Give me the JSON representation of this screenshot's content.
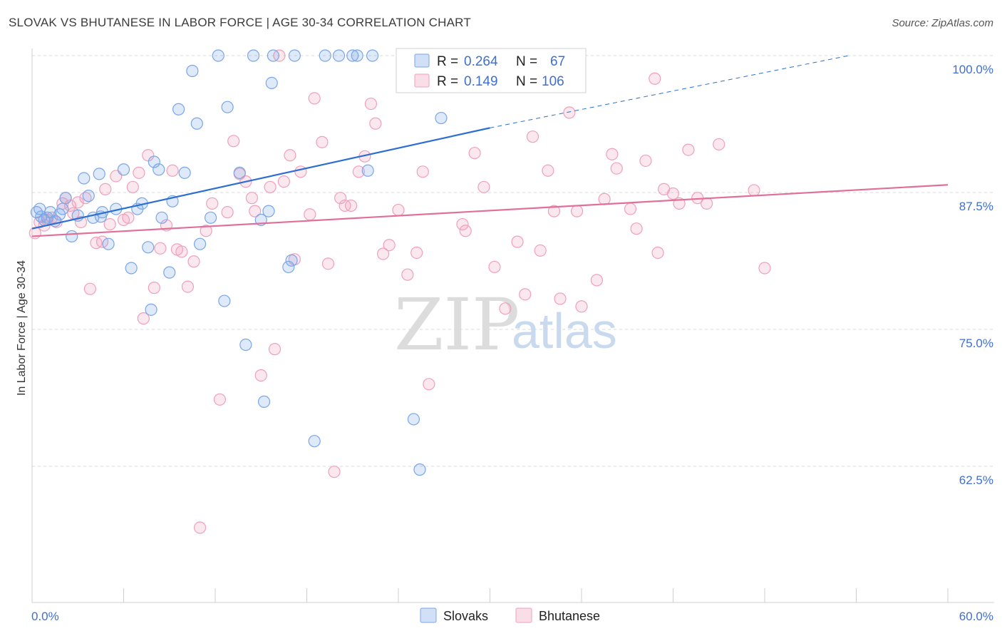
{
  "title": "SLOVAK VS BHUTANESE IN LABOR FORCE | AGE 30-34 CORRELATION CHART",
  "source": "Source: ZipAtlas.com",
  "watermark": {
    "zip": "ZIP",
    "atlas": "atlas"
  },
  "colors": {
    "slovak": "#7aa6e8",
    "slovak_fill": "rgba(122,166,232,0.25)",
    "slovak_line": "#2c6fd1",
    "bhutanese": "#f0a0ba",
    "bhutanese_fill": "rgba(240,160,186,0.25)",
    "bhutanese_line": "#e0709a",
    "grid": "#d8d8d8",
    "tick_text": "#3f6fcf"
  },
  "legend": {
    "rows": [
      {
        "r_label": "R = ",
        "r_value": "0.264",
        "n_label": "N = ",
        "n_value": "67"
      },
      {
        "r_label": "R = ",
        "r_value": "0.149",
        "n_label": "N = ",
        "n_value": "106"
      }
    ]
  },
  "chart_data": {
    "type": "scatter",
    "title": "SLOVAK VS BHUTANESE IN LABOR FORCE | AGE 30-34 CORRELATION CHART",
    "xlabel": "",
    "ylabel": "In Labor Force | Age 30-34",
    "xlim": [
      0,
      60
    ],
    "ylim": [
      52,
      100
    ],
    "x_tick_labels": [
      "0.0%",
      "60.0%"
    ],
    "y_ticks": [
      62.5,
      75.0,
      87.5,
      100.0
    ],
    "y_tick_labels": [
      "62.5%",
      "75.0%",
      "87.5%",
      "100.0%"
    ],
    "grid": true,
    "legend_position": "top-center",
    "series": [
      {
        "name": "Slovaks",
        "r": 0.264,
        "n": 67,
        "trend": {
          "x0": 0,
          "y0": 84.2,
          "x1": 30,
          "y1": 93.4,
          "dash_to_x": 53.5,
          "dash_to_y": 100.0
        },
        "points": [
          [
            0.3,
            85.7
          ],
          [
            0.5,
            86.0
          ],
          [
            0.6,
            85.3
          ],
          [
            0.8,
            85.0
          ],
          [
            1.0,
            85.2
          ],
          [
            1.2,
            85.7
          ],
          [
            1.5,
            84.9
          ],
          [
            1.8,
            85.5
          ],
          [
            2.0,
            86.0
          ],
          [
            2.2,
            87.0
          ],
          [
            2.6,
            83.5
          ],
          [
            3.0,
            85.4
          ],
          [
            3.4,
            88.8
          ],
          [
            3.7,
            87.2
          ],
          [
            4.0,
            85.2
          ],
          [
            4.4,
            89.2
          ],
          [
            4.5,
            85.3
          ],
          [
            4.6,
            85.7
          ],
          [
            5.0,
            82.8
          ],
          [
            5.5,
            86.0
          ],
          [
            6.0,
            89.6
          ],
          [
            6.5,
            80.6
          ],
          [
            6.9,
            86.0
          ],
          [
            7.2,
            86.5
          ],
          [
            7.6,
            82.5
          ],
          [
            7.8,
            76.8
          ],
          [
            8.0,
            90.3
          ],
          [
            8.3,
            89.6
          ],
          [
            8.5,
            85.2
          ],
          [
            9.0,
            80.2
          ],
          [
            9.2,
            86.7
          ],
          [
            9.6,
            95.1
          ],
          [
            10.0,
            89.3
          ],
          [
            10.5,
            98.6
          ],
          [
            10.8,
            93.8
          ],
          [
            11.0,
            82.8
          ],
          [
            11.7,
            85.2
          ],
          [
            12.2,
            100.0
          ],
          [
            12.6,
            77.6
          ],
          [
            12.8,
            95.3
          ],
          [
            13.6,
            89.3
          ],
          [
            14.0,
            73.6
          ],
          [
            14.5,
            100.0
          ],
          [
            15.0,
            85.0
          ],
          [
            15.2,
            68.4
          ],
          [
            15.5,
            85.8
          ],
          [
            15.7,
            97.5
          ],
          [
            15.8,
            100.0
          ],
          [
            16.8,
            80.7
          ],
          [
            17.0,
            81.3
          ],
          [
            17.2,
            100.0
          ],
          [
            18.5,
            64.8
          ],
          [
            19.2,
            100.0
          ],
          [
            20.1,
            100.0
          ],
          [
            21.0,
            100.0
          ],
          [
            21.3,
            100.0
          ],
          [
            22.0,
            89.5
          ],
          [
            22.3,
            100.0
          ],
          [
            25.0,
            66.8
          ],
          [
            25.4,
            62.2
          ],
          [
            25.5,
            100.0
          ],
          [
            26.8,
            94.3
          ],
          [
            27.2,
            100.0
          ],
          [
            28.8,
            100.0
          ],
          [
            29.0,
            100.0
          ],
          [
            30.0,
            99.8
          ],
          [
            30.2,
            99.8
          ]
        ]
      },
      {
        "name": "Bhutanese",
        "r": 0.149,
        "n": 106,
        "trend": {
          "x0": 0,
          "y0": 83.5,
          "x1": 60,
          "y1": 88.2
        },
        "points": [
          [
            0.2,
            83.8
          ],
          [
            0.5,
            84.8
          ],
          [
            0.8,
            84.5
          ],
          [
            1.0,
            85.0
          ],
          [
            1.3,
            85.2
          ],
          [
            1.6,
            84.8
          ],
          [
            2.0,
            86.5
          ],
          [
            2.2,
            87.0
          ],
          [
            2.5,
            86.3
          ],
          [
            2.7,
            85.6
          ],
          [
            3.0,
            86.6
          ],
          [
            3.2,
            84.8
          ],
          [
            3.5,
            87.0
          ],
          [
            3.8,
            78.7
          ],
          [
            4.2,
            82.9
          ],
          [
            4.6,
            83.0
          ],
          [
            4.8,
            87.8
          ],
          [
            5.1,
            84.6
          ],
          [
            5.5,
            89.0
          ],
          [
            6.0,
            85.0
          ],
          [
            6.3,
            85.2
          ],
          [
            6.6,
            88.0
          ],
          [
            7.0,
            89.3
          ],
          [
            7.3,
            76.0
          ],
          [
            7.6,
            90.9
          ],
          [
            8.0,
            78.8
          ],
          [
            8.4,
            82.4
          ],
          [
            8.8,
            84.5
          ],
          [
            9.2,
            89.5
          ],
          [
            9.5,
            82.3
          ],
          [
            9.8,
            82.1
          ],
          [
            10.2,
            78.9
          ],
          [
            10.6,
            81.2
          ],
          [
            11.0,
            56.9
          ],
          [
            11.4,
            84.0
          ],
          [
            11.8,
            86.5
          ],
          [
            12.3,
            68.6
          ],
          [
            12.8,
            85.7
          ],
          [
            13.2,
            92.2
          ],
          [
            13.6,
            89.2
          ],
          [
            14.0,
            88.5
          ],
          [
            14.4,
            87.0
          ],
          [
            14.6,
            85.8
          ],
          [
            15.0,
            70.8
          ],
          [
            15.6,
            88.0
          ],
          [
            15.9,
            73.2
          ],
          [
            16.2,
            100.0
          ],
          [
            16.5,
            88.5
          ],
          [
            16.9,
            90.9
          ],
          [
            17.2,
            81.4
          ],
          [
            17.6,
            89.4
          ],
          [
            18.2,
            85.5
          ],
          [
            18.5,
            96.1
          ],
          [
            19.0,
            92.1
          ],
          [
            19.4,
            81.0
          ],
          [
            19.8,
            62.0
          ],
          [
            20.2,
            87.0
          ],
          [
            20.5,
            86.3
          ],
          [
            20.9,
            86.3
          ],
          [
            21.4,
            89.4
          ],
          [
            21.8,
            90.8
          ],
          [
            22.2,
            95.6
          ],
          [
            22.5,
            93.8
          ],
          [
            23.0,
            81.9
          ],
          [
            23.4,
            82.7
          ],
          [
            24.0,
            85.9
          ],
          [
            24.6,
            80.0
          ],
          [
            25.2,
            82.0
          ],
          [
            25.6,
            89.4
          ],
          [
            26.0,
            70.0
          ],
          [
            26.5,
            100.0
          ],
          [
            27.2,
            100.0
          ],
          [
            28.2,
            84.6
          ],
          [
            28.4,
            84.0
          ],
          [
            29.0,
            91.1
          ],
          [
            29.6,
            88.0
          ],
          [
            30.3,
            80.7
          ],
          [
            31.0,
            76.9
          ],
          [
            31.8,
            83.0
          ],
          [
            32.3,
            78.2
          ],
          [
            32.8,
            92.6
          ],
          [
            33.3,
            82.2
          ],
          [
            33.8,
            89.5
          ],
          [
            34.2,
            85.8
          ],
          [
            34.6,
            77.8
          ],
          [
            35.2,
            94.8
          ],
          [
            35.7,
            85.8
          ],
          [
            36.0,
            77.1
          ],
          [
            37.0,
            79.5
          ],
          [
            37.5,
            86.9
          ],
          [
            38.0,
            91.0
          ],
          [
            38.3,
            89.7
          ],
          [
            39.2,
            86.0
          ],
          [
            39.6,
            84.2
          ],
          [
            40.2,
            90.4
          ],
          [
            40.8,
            97.9
          ],
          [
            41.0,
            82.0
          ],
          [
            41.4,
            87.8
          ],
          [
            42.0,
            87.4
          ],
          [
            42.4,
            86.5
          ],
          [
            43.0,
            91.4
          ],
          [
            43.6,
            87.0
          ],
          [
            44.2,
            86.5
          ],
          [
            45.0,
            91.9
          ],
          [
            47.3,
            87.7
          ],
          [
            48.0,
            80.6
          ]
        ]
      }
    ]
  }
}
